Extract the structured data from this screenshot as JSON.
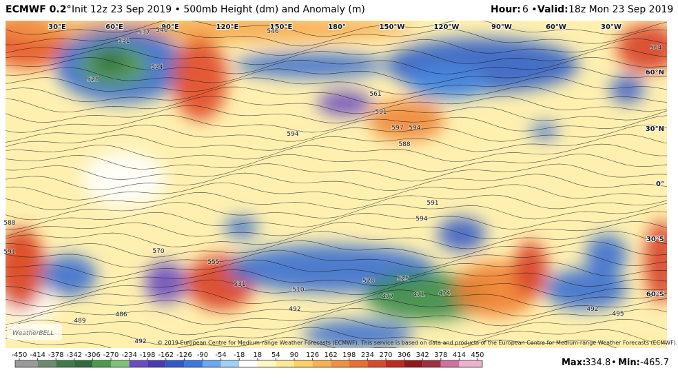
{
  "header": {
    "model": "ECMWF 0.2°",
    "description": "Init 12z 23 Sep 2019 • 500mb Height (dm) and Anomaly (m)",
    "hour_label": "Hour:",
    "hour": "6 •",
    "valid_label": "Valid:",
    "valid": "18z Mon 23 Sep 2019"
  },
  "map": {
    "longitude_labels": [
      "30°E",
      "60°E",
      "90°E",
      "120°E",
      "150°E",
      "180°",
      "150°W",
      "120°W",
      "90°W",
      "60°W",
      "30°W"
    ],
    "latitude_labels": [
      "60°N",
      "30°N",
      "0°",
      "30°S",
      "60°S"
    ],
    "contour_labels": [
      "537",
      "540",
      "546",
      "531",
      "528",
      "534",
      "564",
      "561",
      "591",
      "597",
      "594",
      "594",
      "588",
      "591",
      "594",
      "570",
      "555",
      "531",
      "510",
      "528",
      "525",
      "477",
      "471",
      "474",
      "489",
      "486",
      "492",
      "492",
      "495",
      "492",
      "591",
      "588"
    ],
    "logo": "WeatherBELL",
    "copyright": "© 2019 European Centre for Medium-range Weather Forecasts (ECMWF). This service is based on data and products of the European Centre for Medium-range Weather Forecasts (ECMWF)."
  },
  "colorbar": {
    "ticks": [
      -450,
      -414,
      -378,
      -342,
      -306,
      -270,
      -234,
      -198,
      -162,
      -126,
      -90,
      -54,
      -18,
      18,
      54,
      90,
      126,
      162,
      198,
      234,
      270,
      306,
      342,
      378,
      414,
      450
    ]
  },
  "stats": {
    "max_label": "Max:",
    "max": 334.8,
    "separator": "•",
    "min_label": "Min:",
    "min": -465.7
  }
}
